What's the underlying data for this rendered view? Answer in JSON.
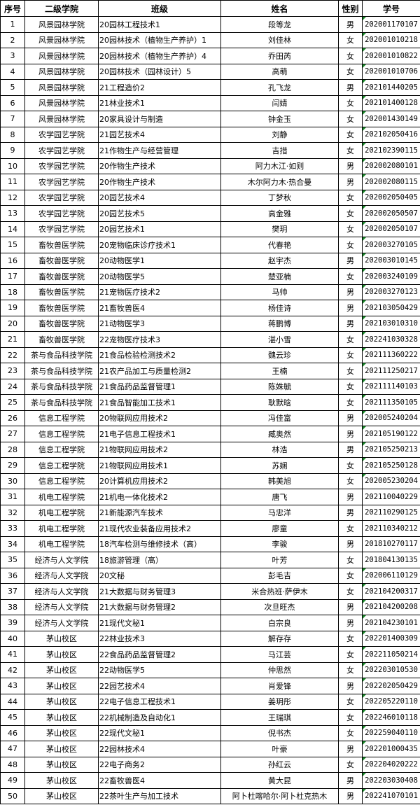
{
  "headers": [
    "序号",
    "二级学院",
    "班级",
    "姓名",
    "性别",
    "学号"
  ],
  "flag_color": "#1a8a2a",
  "rows": [
    [
      "1",
      "风景园林学院",
      "20园林工程技术1",
      "段等龙",
      "男",
      "202001170107",
      true
    ],
    [
      "2",
      "风景园林学院",
      "20园林技术（植物生产养护）1",
      "刘佳林",
      "女",
      "202001010218",
      true
    ],
    [
      "3",
      "风景园林学院",
      "20园林技术（植物生产养护）4",
      "乔田芮",
      "女",
      "202001010822",
      true
    ],
    [
      "4",
      "风景园林学院",
      "20园林技术（园林设计）5",
      "高萌",
      "女",
      "202001010706",
      true
    ],
    [
      "5",
      "风景园林学院",
      "21工程造价2",
      "孔飞龙",
      "男",
      "202101440205",
      true
    ],
    [
      "6",
      "风景园林学院",
      "21林业技术1",
      "闫婧",
      "女",
      "202101400128",
      true
    ],
    [
      "7",
      "风景园林学院",
      "20家具设计与制造",
      "钟金玉",
      "女",
      "202001430149",
      true
    ],
    [
      "8",
      "农学园艺学院",
      "21园艺技术4",
      "刘静",
      "女",
      "202102050416",
      true
    ],
    [
      "9",
      "农学园艺学院",
      "21作物生产与经营管理",
      "吉措",
      "女",
      "202102390115",
      true
    ],
    [
      "10",
      "农学园艺学院",
      "20作物生产技术",
      "阿力木江·如则",
      "男",
      "202002080101",
      true
    ],
    [
      "11",
      "农学园艺学院",
      "20作物生产技术",
      "木尔阿力木·热合曼",
      "男",
      "202002080115",
      true
    ],
    [
      "12",
      "农学园艺学院",
      "20园艺技术4",
      "丁梦秋",
      "女",
      "202002050405",
      true
    ],
    [
      "13",
      "农学园艺学院",
      "20园艺技术5",
      "高金雅",
      "女",
      "202002050507",
      true
    ],
    [
      "14",
      "农学园艺学院",
      "20园艺技术1",
      "樊玥",
      "女",
      "202002050107",
      true
    ],
    [
      "15",
      "畜牧兽医学院",
      "20宠物临床诊疗技术1",
      "代春艳",
      "女",
      "202003270105",
      true
    ],
    [
      "16",
      "畜牧兽医学院",
      "20动物医学1",
      "赵宇杰",
      "男",
      "202003010145",
      true
    ],
    [
      "17",
      "畜牧兽医学院",
      "20动物医学5",
      "楚亚楠",
      "女",
      "202003240109",
      true
    ],
    [
      "18",
      "畜牧兽医学院",
      "21宠物医疗技术2",
      "马帅",
      "男",
      "202003270123",
      true
    ],
    [
      "19",
      "畜牧兽医学院",
      "21畜牧兽医4",
      "杨佳诗",
      "男",
      "202103050429",
      true
    ],
    [
      "20",
      "畜牧兽医学院",
      "21动物医学3",
      "蒋鹏博",
      "男",
      "202103010310",
      true
    ],
    [
      "21",
      "畜牧兽医学院",
      "22宠物医疗技术3",
      "湛小雪",
      "女",
      "202241030328",
      true
    ],
    [
      "22",
      "茶与食品科技学院",
      "21食品检验检测技术2",
      "魏云珍",
      "女",
      "202111360222",
      true
    ],
    [
      "23",
      "茶与食品科技学院",
      "21农产品加工与质量检测2",
      "王楠",
      "女",
      "202111250217",
      true
    ],
    [
      "24",
      "茶与食品科技学院",
      "21食品药品监督管理1",
      "陈姝毓",
      "女",
      "202111140103",
      true
    ],
    [
      "25",
      "茶与食品科技学院",
      "21食品智能加工技术1",
      "耿默晗",
      "女",
      "202111350105",
      true
    ],
    [
      "26",
      "信息工程学院",
      "20物联网应用技术2",
      "冯佳富",
      "男",
      "202005240204",
      true
    ],
    [
      "27",
      "信息工程学院",
      "21电子信息工程技术1",
      "臧奥然",
      "男",
      "202105190122",
      true
    ],
    [
      "28",
      "信息工程学院",
      "21物联网应用技术2",
      "林浩",
      "男",
      "202105250213",
      true
    ],
    [
      "29",
      "信息工程学院",
      "21物联网应用技术1",
      "苏娴",
      "女",
      "202105250128",
      true
    ],
    [
      "30",
      "信息工程学院",
      "20计算机应用技术2",
      "韩美旭",
      "女",
      "202005230204",
      true
    ],
    [
      "31",
      "机电工程学院",
      "21机电一体化技术2",
      "唐飞",
      "男",
      "202110040229",
      false
    ],
    [
      "32",
      "机电工程学院",
      "21新能源汽车技术",
      "马忠洋",
      "男",
      "202110290125",
      false
    ],
    [
      "33",
      "机电工程学院",
      "21现代农业装备应用技术2",
      "廖童",
      "女",
      "202110340212",
      false
    ],
    [
      "34",
      "机电工程学院",
      "18汽车检测与维修技术（高）",
      "李骏",
      "男",
      "201810270117",
      false
    ],
    [
      "35",
      "经济与人文学院",
      "18旅游管理（高）",
      "叶芳",
      "女",
      "201804130135",
      false
    ],
    [
      "36",
      "经济与人文学院",
      "20文秘",
      "彭毛吉",
      "女",
      "202006110129",
      true
    ],
    [
      "37",
      "经济与人文学院",
      "21大数据与财务管理3",
      "米合热班·萨伊木",
      "女",
      "202104200317",
      true
    ],
    [
      "38",
      "经济与人文学院",
      "21大数据与财务管理2",
      "次旦旺杰",
      "男",
      "202104200208",
      true
    ],
    [
      "39",
      "经济与人文学院",
      "21现代文秘1",
      "白宗良",
      "男",
      "202104230101",
      true
    ],
    [
      "40",
      "茅山校区",
      "22林业技术3",
      "解存存",
      "女",
      "202201400309",
      true
    ],
    [
      "41",
      "茅山校区",
      "22食品药品监督管理2",
      "马江芸",
      "女",
      "202211050214",
      true
    ],
    [
      "42",
      "茅山校区",
      "22动物医学5",
      "仲思然",
      "女",
      "202203010530",
      true
    ],
    [
      "43",
      "茅山校区",
      "22园艺技术4",
      "肖爱锋",
      "男",
      "202202050429",
      true
    ],
    [
      "44",
      "茅山校区",
      "22电子信息工程技术1",
      "姜玥彤",
      "女",
      "202205220110",
      true
    ],
    [
      "45",
      "茅山校区",
      "22机械制造及自动化1",
      "王瑞琪",
      "女",
      "202246010118",
      true
    ],
    [
      "46",
      "茅山校区",
      "22现代文秘1",
      "倪书杰",
      "女",
      "202259040110",
      true
    ],
    [
      "47",
      "茅山校区",
      "22园林技术4",
      "叶豪",
      "男",
      "202201000435",
      true
    ],
    [
      "48",
      "茅山校区",
      "22电子商务2",
      "孙红云",
      "女",
      "202204020222",
      true
    ],
    [
      "49",
      "茅山校区",
      "22畜牧兽医4",
      "黄大昆",
      "男",
      "202203030408",
      true
    ],
    [
      "50",
      "茅山校区",
      "22茶叶生产与加工技术",
      "阿卜杜喀哈尔·阿卜杜克热木",
      "男",
      "202241070101",
      true
    ]
  ]
}
